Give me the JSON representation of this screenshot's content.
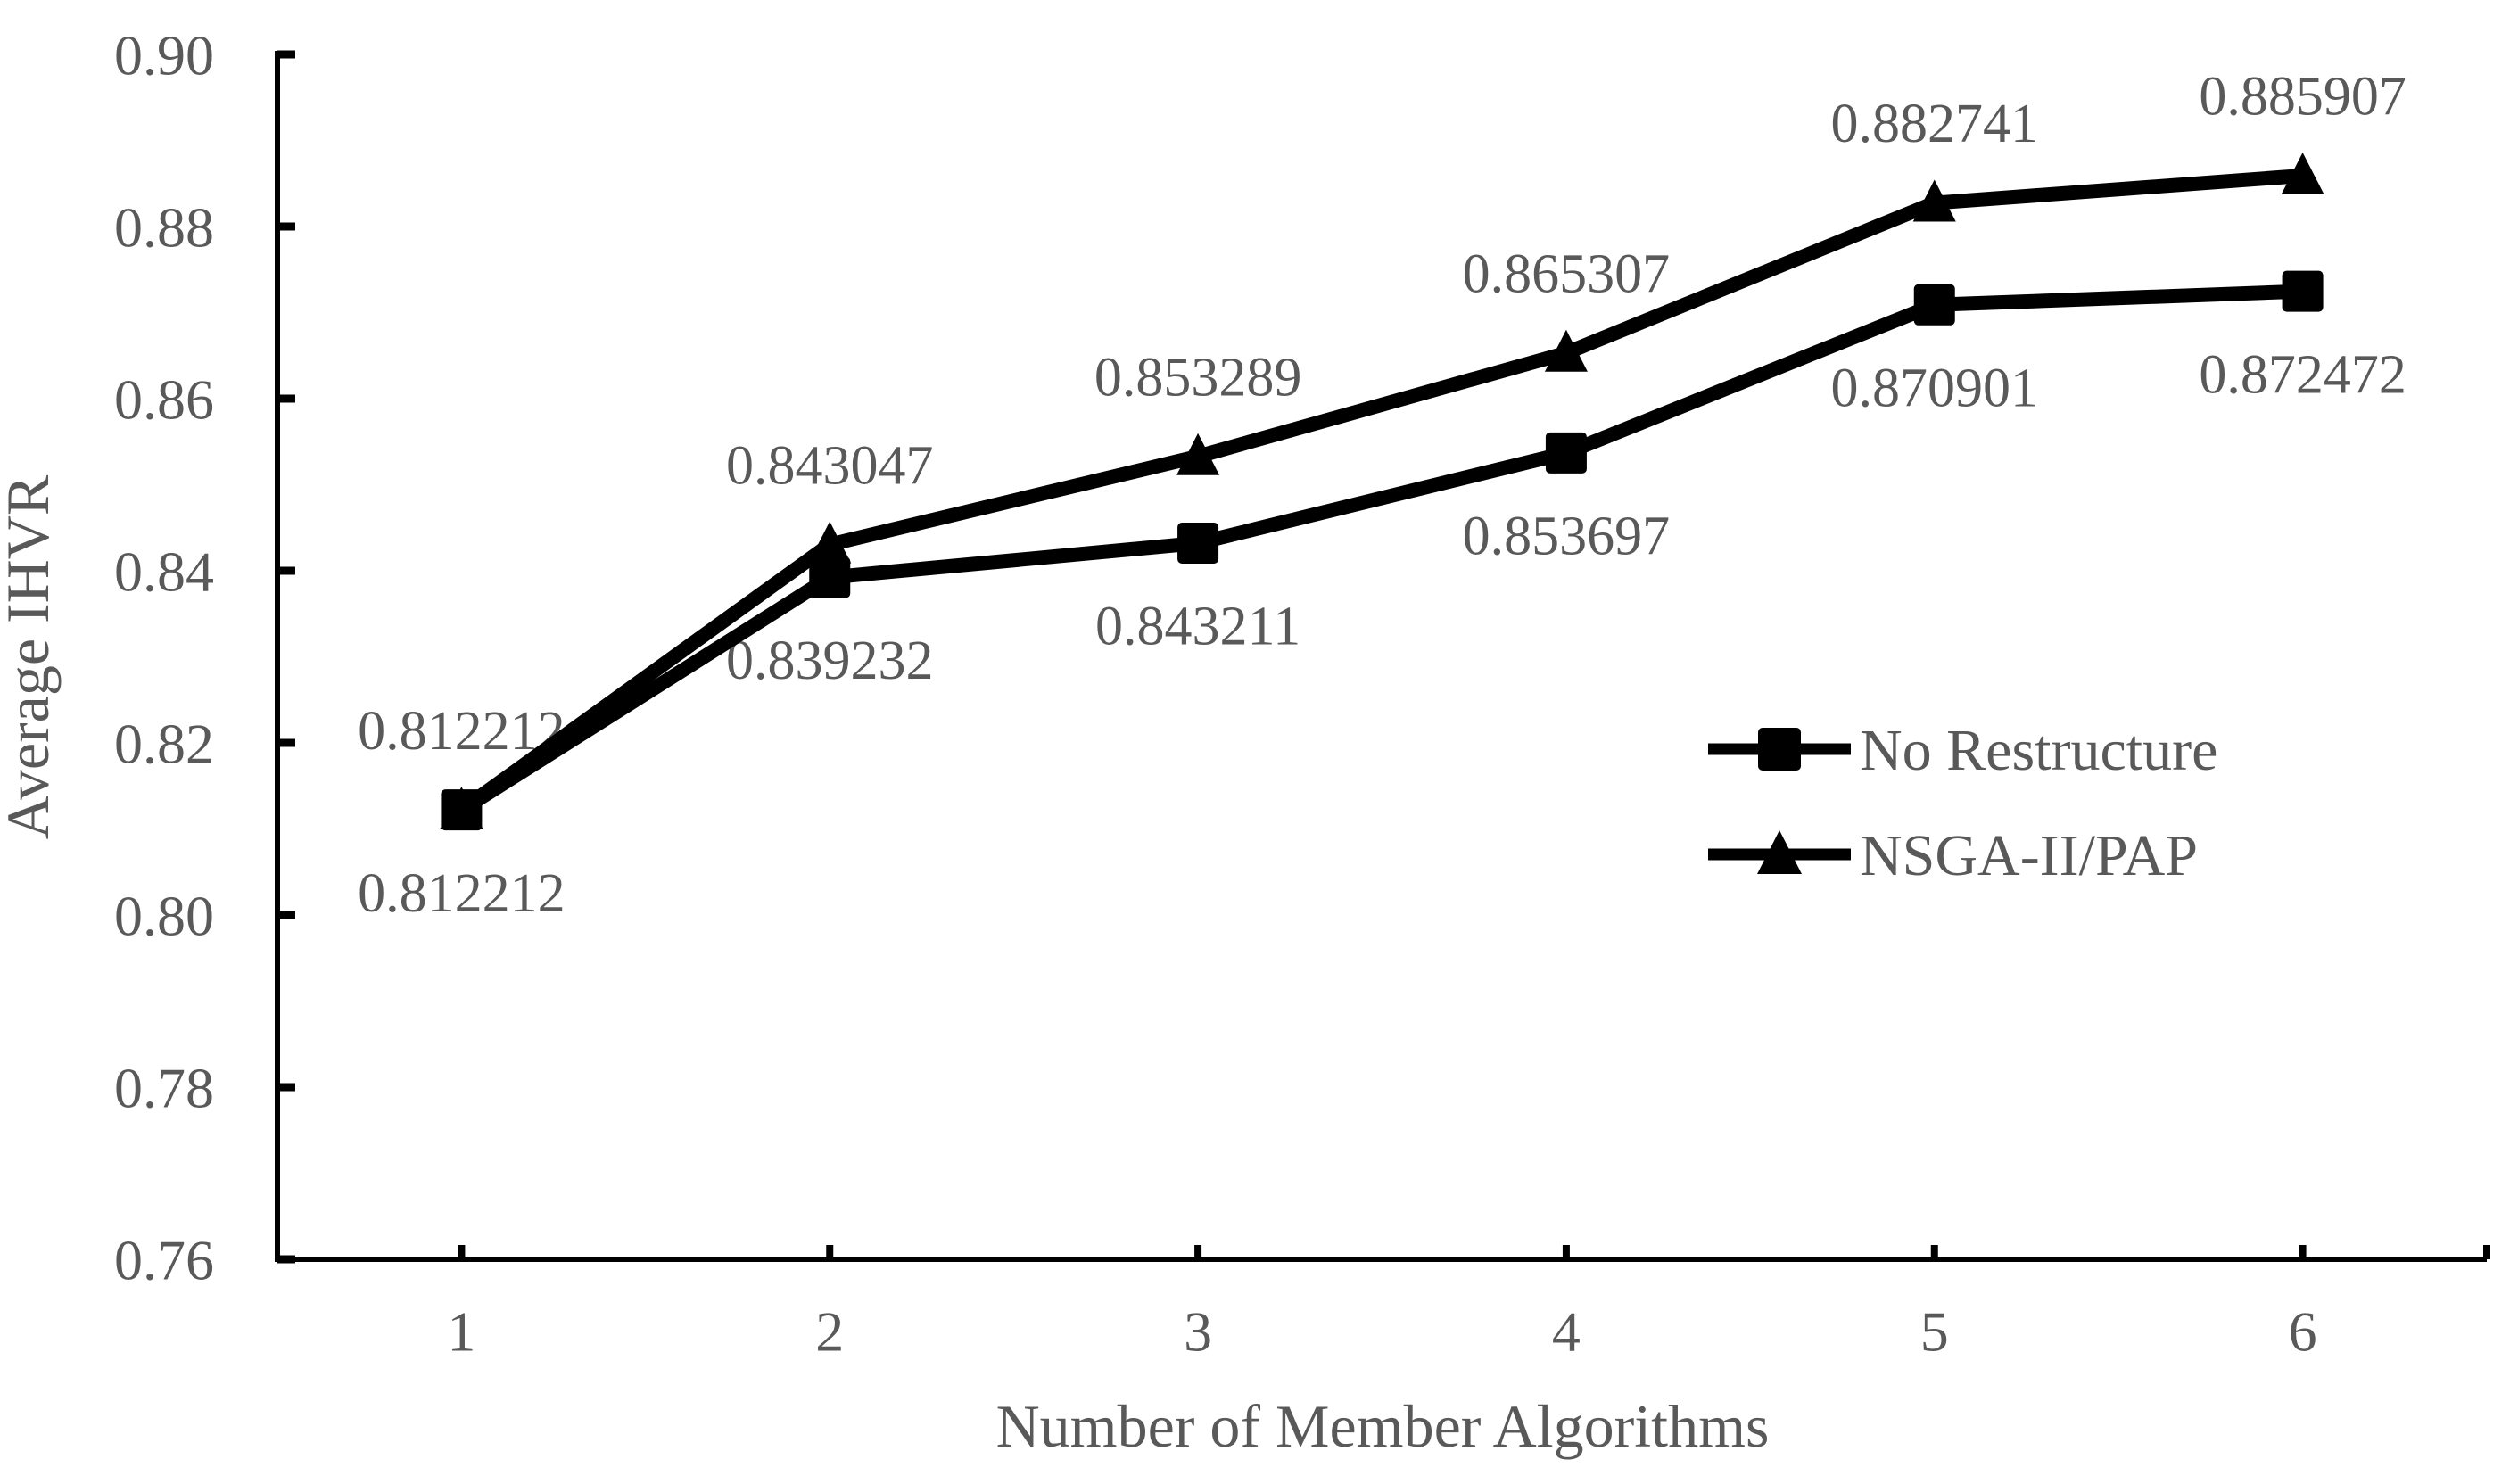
{
  "chart_data": {
    "type": "line",
    "title": "",
    "xlabel": "Number of Member Algorithms",
    "ylabel": "Average IHVR",
    "categories": [
      "1",
      "2",
      "3",
      "4",
      "5",
      "6"
    ],
    "ylim": [
      0.76,
      0.9
    ],
    "y_tick_step": 0.02,
    "y_tick_decimals": 2,
    "grid": false,
    "legend_position": "middle-right",
    "series": [
      {
        "name": "No Restructure",
        "marker": "square",
        "label_position": "below",
        "values": [
          0.812212,
          0.839232,
          0.843211,
          0.853697,
          0.870901,
          0.872472
        ],
        "point_labels": [
          "0.812212",
          "0.839232",
          "0.843211",
          "0.853697",
          "0.870901",
          "0.872472"
        ]
      },
      {
        "name": "NSGA-II/PAP",
        "marker": "triangle",
        "label_position": "above",
        "values": [
          0.812212,
          0.843047,
          0.853289,
          0.865307,
          0.882741,
          0.885907
        ],
        "point_labels": [
          "0.812212",
          "0.843047",
          "0.853289",
          "0.865307",
          "0.882741",
          "0.885907"
        ]
      }
    ],
    "colors": {
      "series_line": "#000000",
      "marker_fill": "#000000",
      "axis_line": "#000000",
      "text": "#595959",
      "background": "#ffffff"
    }
  }
}
